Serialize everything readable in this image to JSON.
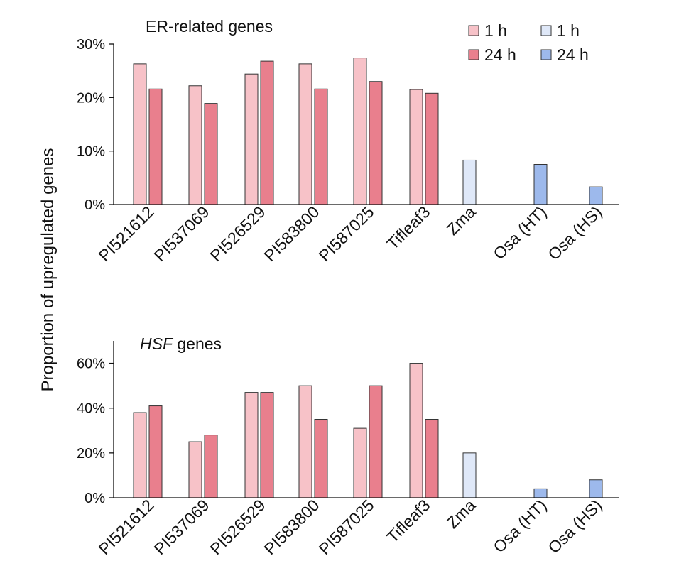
{
  "ylabel": "Proportion of upregulated genes",
  "colors": {
    "pink_1h": "#f7c2c8",
    "pink_24h": "#e97f8d",
    "blue_1h": "#dfe8f8",
    "blue_24h": "#9db9ec",
    "edge": "#333333"
  },
  "legend": [
    {
      "label": "1 h",
      "color_key": "pink_1h"
    },
    {
      "label": "24 h",
      "color_key": "pink_24h"
    },
    {
      "label": "1 h",
      "color_key": "blue_1h"
    },
    {
      "label": "24 h",
      "color_key": "blue_24h"
    }
  ],
  "chart_data": [
    {
      "type": "bar",
      "title": "ER-related genes",
      "title_italic_part": "",
      "ylim": [
        0,
        30
      ],
      "yticks": [
        0,
        10,
        20,
        30
      ],
      "ytick_labels": [
        "0%",
        "10%",
        "20%",
        "30%"
      ],
      "categories": [
        "PI521612",
        "PI537069",
        "PI526529",
        "PI583800",
        "PI587025",
        "Tifleaf3",
        "Zma",
        "Osa (HT)",
        "Osa (HS)"
      ],
      "series": [
        {
          "name": "1 h",
          "values": [
            26.3,
            22.2,
            24.4,
            26.3,
            27.4,
            21.5,
            8.3,
            null,
            null
          ]
        },
        {
          "name": "24 h",
          "values": [
            21.6,
            18.9,
            26.8,
            21.6,
            23.0,
            20.8,
            null,
            7.5,
            3.3
          ]
        }
      ]
    },
    {
      "type": "bar",
      "title": " genes",
      "title_italic_part": "HSF",
      "ylim": [
        0,
        70
      ],
      "yticks": [
        0,
        20,
        40,
        60
      ],
      "ytick_labels": [
        "0%",
        "20%",
        "40%",
        "60%"
      ],
      "categories": [
        "PI521612",
        "PI537069",
        "PI526529",
        "PI583800",
        "PI587025",
        "Tifleaf3",
        "Zma",
        "Osa (HT)",
        "Osa (HS)"
      ],
      "series": [
        {
          "name": "1 h",
          "values": [
            38,
            25,
            47,
            50,
            31,
            60,
            20,
            null,
            null
          ]
        },
        {
          "name": "24 h",
          "values": [
            41,
            28,
            47,
            35,
            50,
            35,
            null,
            4,
            8
          ]
        }
      ]
    }
  ]
}
